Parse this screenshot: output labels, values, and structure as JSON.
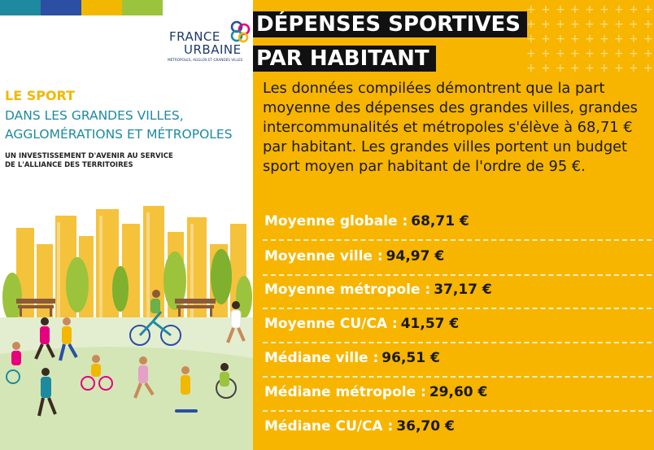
{
  "cover": {
    "stripe_colors": [
      "#1e8aa0",
      "#2a4fa3",
      "#f2b800",
      "#9cc33c"
    ],
    "logo": {
      "line1": "FRANCE",
      "line2": "URBAINE",
      "line3": "MÉTROPOLES, AGGLOS ET GRANDES VILLES"
    },
    "title": "LE SPORT",
    "subtitle_line1": "DANS LES GRANDES VILLES,",
    "subtitle_line2": "AGGLOMÉRATIONS ET MÉTROPOLES",
    "tagline_line1": "UN INVESTISSEMENT D'AVENIR AU SERVICE",
    "tagline_line2": "DE L'ALLIANCE DES TERRITOIRES"
  },
  "infographic": {
    "headline_line1": "DÉPENSES SPORTIVES",
    "headline_line2": "PAR HABITANT",
    "body": "Les données compilées démontrent que la part moyenne des dépenses des grandes villes, grandes intercommunalités et métropoles s'élève à 68,71 € par habitant. Les grandes villes portent un budget sport moyen par habitant de l'ordre de 95 €.",
    "stats": [
      {
        "label": "Moyenne globale :",
        "value": "68,71 €"
      },
      {
        "label": "Moyenne ville :",
        "value": "94,97 €"
      },
      {
        "label": "Moyenne métropole :",
        "value": "37,17 €"
      },
      {
        "label": "Moyenne CU/CA :",
        "value": "41,57 €"
      },
      {
        "label": "Médiane ville :",
        "value": "96,51 €"
      },
      {
        "label": "Médiane métropole :",
        "value": "29,60 €"
      },
      {
        "label": "Médiane CU/CA :",
        "value": "36,70 €"
      }
    ],
    "colors": {
      "background": "#f7b500",
      "headline_bg": "#111111",
      "label": "#ffffff",
      "value": "#1a1a1a"
    }
  }
}
